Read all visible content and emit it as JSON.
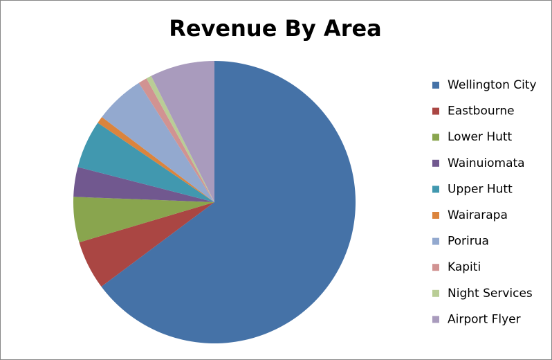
{
  "chart_data": {
    "type": "pie",
    "title": "Revenue By Area",
    "categories": [
      "Wellington City",
      "Eastbourne",
      "Lower Hutt",
      "Wainuiomata",
      "Upper Hutt",
      "Wairarapa",
      "Porirua",
      "Kapiti",
      "Night Services",
      "Airport Flyer"
    ],
    "values": [
      64.8,
      5.6,
      5.2,
      3.4,
      5.5,
      0.8,
      5.7,
      1.0,
      0.6,
      7.4
    ],
    "colors": [
      "#4572A7",
      "#AA4643",
      "#89A54E",
      "#71588F",
      "#4198AF",
      "#DB843D",
      "#93A9CF",
      "#D19392",
      "#B9CD96",
      "#A99BBD"
    ],
    "legend": "right"
  }
}
